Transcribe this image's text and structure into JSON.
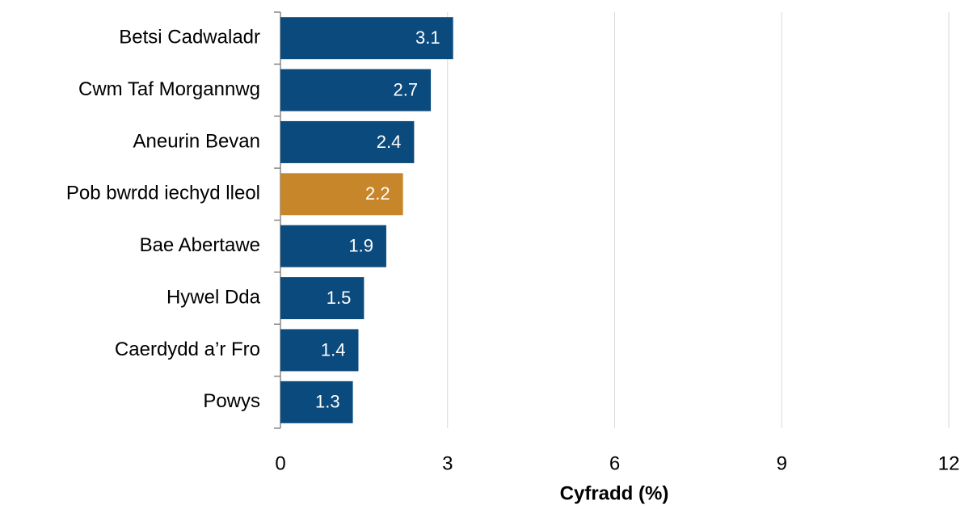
{
  "chart_data": {
    "type": "barh",
    "categories": [
      "Betsi Cadwaladr",
      "Cwm Taf Morgannwg",
      "Aneurin Bevan",
      "Pob bwrdd iechyd lleol",
      "Bae Abertawe",
      "Hywel Dda",
      "Caerdydd a’r Fro",
      "Powys"
    ],
    "values": [
      3.1,
      2.7,
      2.4,
      2.2,
      1.9,
      1.5,
      1.4,
      1.3
    ],
    "colors": [
      "#0b4a7d",
      "#0b4a7d",
      "#0b4a7d",
      "#c8862a",
      "#0b4a7d",
      "#0b4a7d",
      "#0b4a7d",
      "#0b4a7d"
    ],
    "xlim": [
      0,
      12
    ],
    "xticks": [
      0,
      3,
      6,
      9,
      12
    ],
    "grid": true,
    "xlabel": "Cyfradd (%)"
  }
}
